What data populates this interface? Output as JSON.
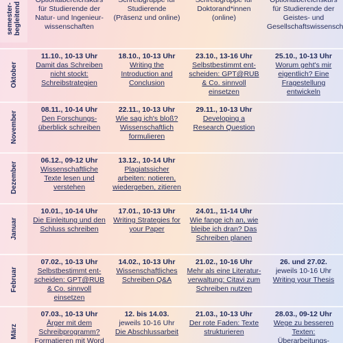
{
  "header": {
    "label": "semester-begleitend",
    "cells": [
      "Optionalbereichskurs für Studierende der Natur- und Ingenieur-wissenschaften",
      "Schreibgruppe für Studierende (Präsenz und online)",
      "Schreibgruppe für Doktorand*innen (online)",
      "Optionalbereichskurs für Studierende der Geistes- und Gesellschaftswissenschaften"
    ]
  },
  "rows": [
    {
      "month": "Oktober",
      "cells": [
        {
          "date": "11.10., 10-13 Uhr",
          "title": "Damit das Schreiben nicht stockt: Schreibstrategien"
        },
        {
          "date": "18.10., 10-13 Uhr",
          "title": "Writing the Introduction and Conclusion"
        },
        {
          "date": "23.10., 13-16 Uhr",
          "title": "Selbstbestimmt ent-scheiden: GPT@RUB & Co. sinnvoll einsetzen"
        },
        {
          "date": "25.10., 10-13 Uhr",
          "title": "Worum geht's mir eigentlich? Eine Fragestellung entwickeln"
        }
      ]
    },
    {
      "month": "November",
      "cells": [
        {
          "date": "08.11., 10-14 Uhr",
          "title": "Den Forschungs-überblick schreiben"
        },
        {
          "date": "22.11., 10-13 Uhr",
          "title": "Wie sag ich's bloß? Wissenschaftlich formulieren"
        },
        {
          "date": "29.11., 10-13 Uhr",
          "title": "Developing a Research Question"
        },
        null
      ]
    },
    {
      "month": "Dezember",
      "cells": [
        {
          "date": "06.12., 09-12 Uhr",
          "title": "Wissenschaftliche Texte lesen und verstehen"
        },
        {
          "date": "13.12., 10-14 Uhr",
          "title": "Plagiatssicher arbeiten: notieren, wiedergeben, zitieren"
        },
        null,
        null
      ]
    },
    {
      "month": "Januar",
      "cells": [
        {
          "date": "10.01., 10-14 Uhr",
          "title": "Die Einleitung und den Schluss schreiben"
        },
        {
          "date": "17.01., 10-13 Uhr",
          "title": "Writing Strategies for your Paper"
        },
        {
          "date": "24.01., 11-14 Uhr",
          "title": "Wie fange ich an, wie bleibe ich dran? Das Schreiben planen"
        },
        null
      ]
    },
    {
      "month": "Februar",
      "cells": [
        {
          "date": "07.02., 10-13 Uhr",
          "title": "Selbstbestimmt ent-scheiden: GPT@RUB & Co. sinnvoll einsetzen"
        },
        {
          "date": "14.02., 10-13 Uhr",
          "title": "Wissenschaftliches Schreiben Q&A"
        },
        {
          "date": "21.02., 10-16 Uhr",
          "title": "Mehr als eine Literatur-verwaltung: Citavi zum Schreiben nutzen"
        },
        {
          "date": "26. und 27.02.",
          "extra": "jeweils 10-16 Uhr",
          "title": "Writing your Thesis"
        }
      ]
    },
    {
      "month": "März",
      "cells": [
        {
          "date": "07.03., 10-13 Uhr",
          "title": "Ärger mit dem Schreibprogramm? Formatieren mit Word"
        },
        {
          "date": "12. bis 14.03.",
          "extra": "jeweils 10-16 Uhr",
          "title": "Die Abschlussarbeit"
        },
        {
          "date": "21.03., 10-13 Uhr",
          "title": "Der rote Faden: Texte strukturieren"
        },
        {
          "date": "28.03., 09-12 Uhr",
          "title": "Wege zu besseren Texten: Überarbeitungs-"
        }
      ]
    }
  ]
}
